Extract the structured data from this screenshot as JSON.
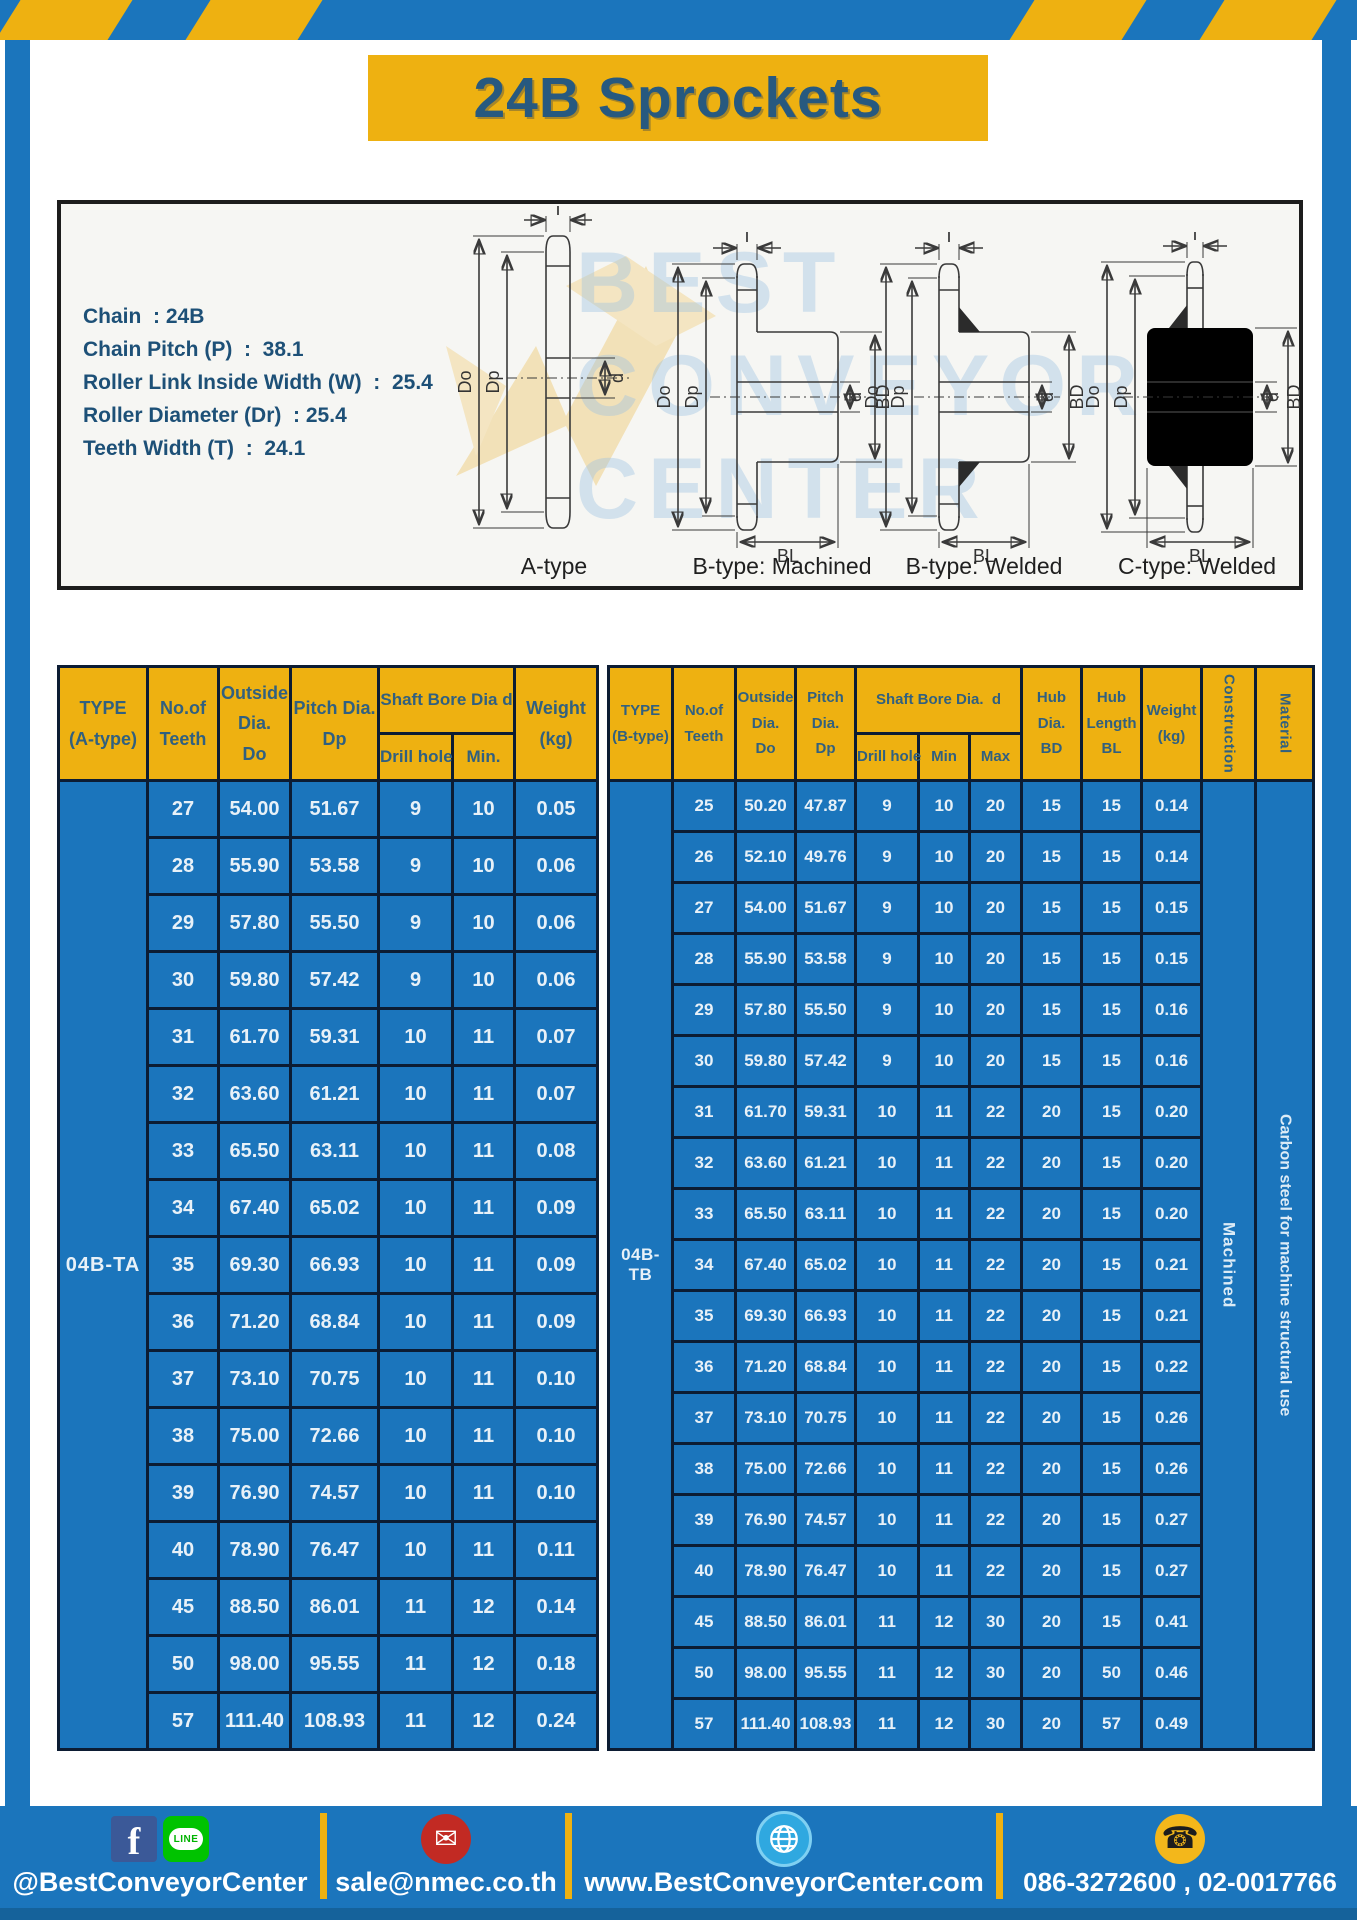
{
  "page": {
    "title": "24B Sprockets"
  },
  "colors": {
    "blue": "#1b75bc",
    "yellow": "#eeb111",
    "navy_text": "#1d5077",
    "cell_border": "#0c1c33"
  },
  "specs": {
    "lines": [
      "Chain  : 24B",
      "Chain Pitch (P)  :  38.1",
      "Roller Link Inside Width (W)  :  25.4",
      "Roller Diameter (Dr)  : 25.4",
      "Teeth Width (T)  :  24.1"
    ]
  },
  "diagram": {
    "drawings": [
      {
        "label": "A-type"
      },
      {
        "label": "B-type: Machined"
      },
      {
        "label": "B-type: Welded"
      },
      {
        "label": "C-type: Welded"
      }
    ],
    "dims": {
      "t": "T",
      "outer": "Do",
      "pitch": "Dp",
      "bore": "d",
      "hub_dia": "BD",
      "hub_len": "BL"
    },
    "watermark": {
      "line1": "BEST",
      "line2": "CONVEYOR",
      "line3": "CENTER"
    }
  },
  "table_a": {
    "type_header": "TYPE\n(A-type)",
    "teeth_header": "No.of\nTeeth",
    "outside_header": "Outside\nDia.\nDo",
    "pitch_header": "Pitch Dia.\nDp",
    "shaft_bore_header": "Shaft Bore Dia d",
    "drill_header": "Drill hole",
    "min_header": "Min.",
    "weight_header": "Weight\n(kg)",
    "type_value": "04B-TA",
    "rows": [
      [
        "27",
        "54.00",
        "51.67",
        "9",
        "10",
        "0.05"
      ],
      [
        "28",
        "55.90",
        "53.58",
        "9",
        "10",
        "0.06"
      ],
      [
        "29",
        "57.80",
        "55.50",
        "9",
        "10",
        "0.06"
      ],
      [
        "30",
        "59.80",
        "57.42",
        "9",
        "10",
        "0.06"
      ],
      [
        "31",
        "61.70",
        "59.31",
        "10",
        "11",
        "0.07"
      ],
      [
        "32",
        "63.60",
        "61.21",
        "10",
        "11",
        "0.07"
      ],
      [
        "33",
        "65.50",
        "63.11",
        "10",
        "11",
        "0.08"
      ],
      [
        "34",
        "67.40",
        "65.02",
        "10",
        "11",
        "0.09"
      ],
      [
        "35",
        "69.30",
        "66.93",
        "10",
        "11",
        "0.09"
      ],
      [
        "36",
        "71.20",
        "68.84",
        "10",
        "11",
        "0.09"
      ],
      [
        "37",
        "73.10",
        "70.75",
        "10",
        "11",
        "0.10"
      ],
      [
        "38",
        "75.00",
        "72.66",
        "10",
        "11",
        "0.10"
      ],
      [
        "39",
        "76.90",
        "74.57",
        "10",
        "11",
        "0.10"
      ],
      [
        "40",
        "78.90",
        "76.47",
        "10",
        "11",
        "0.11"
      ],
      [
        "45",
        "88.50",
        "86.01",
        "11",
        "12",
        "0.14"
      ],
      [
        "50",
        "98.00",
        "95.55",
        "11",
        "12",
        "0.18"
      ],
      [
        "57",
        "111.40",
        "108.93",
        "11",
        "12",
        "0.24"
      ]
    ]
  },
  "table_b": {
    "type_header": "TYPE\n(B-type)",
    "teeth_header": "No.of\nTeeth",
    "outside_header": "Outside\nDia.\nDo",
    "pitch_header": "Pitch\nDia.\nDp",
    "shaft_bore_header": "Shaft Bore Dia.  d",
    "drill_header": "Drill hole",
    "min_header": "Min",
    "max_header": "Max",
    "hub_dia_header": "Hub\nDia.\nBD",
    "hub_len_header": "Hub\nLength\nBL",
    "weight_header": "Weight\n(kg)",
    "construction_header": "Construction",
    "material_header": "Material",
    "type_value": "04B-TB",
    "construction_value": "Machined",
    "material_value": "Carbon steel for machine structural use",
    "rows": [
      [
        "25",
        "50.20",
        "47.87",
        "9",
        "10",
        "20",
        "15",
        "15",
        "0.14"
      ],
      [
        "26",
        "52.10",
        "49.76",
        "9",
        "10",
        "20",
        "15",
        "15",
        "0.14"
      ],
      [
        "27",
        "54.00",
        "51.67",
        "9",
        "10",
        "20",
        "15",
        "15",
        "0.15"
      ],
      [
        "28",
        "55.90",
        "53.58",
        "9",
        "10",
        "20",
        "15",
        "15",
        "0.15"
      ],
      [
        "29",
        "57.80",
        "55.50",
        "9",
        "10",
        "20",
        "15",
        "15",
        "0.16"
      ],
      [
        "30",
        "59.80",
        "57.42",
        "9",
        "10",
        "20",
        "15",
        "15",
        "0.16"
      ],
      [
        "31",
        "61.70",
        "59.31",
        "10",
        "11",
        "22",
        "20",
        "15",
        "0.20"
      ],
      [
        "32",
        "63.60",
        "61.21",
        "10",
        "11",
        "22",
        "20",
        "15",
        "0.20"
      ],
      [
        "33",
        "65.50",
        "63.11",
        "10",
        "11",
        "22",
        "20",
        "15",
        "0.20"
      ],
      [
        "34",
        "67.40",
        "65.02",
        "10",
        "11",
        "22",
        "20",
        "15",
        "0.21"
      ],
      [
        "35",
        "69.30",
        "66.93",
        "10",
        "11",
        "22",
        "20",
        "15",
        "0.21"
      ],
      [
        "36",
        "71.20",
        "68.84",
        "10",
        "11",
        "22",
        "20",
        "15",
        "0.22"
      ],
      [
        "37",
        "73.10",
        "70.75",
        "10",
        "11",
        "22",
        "20",
        "15",
        "0.26"
      ],
      [
        "38",
        "75.00",
        "72.66",
        "10",
        "11",
        "22",
        "20",
        "15",
        "0.26"
      ],
      [
        "39",
        "76.90",
        "74.57",
        "10",
        "11",
        "22",
        "20",
        "15",
        "0.27"
      ],
      [
        "40",
        "78.90",
        "76.47",
        "10",
        "11",
        "22",
        "20",
        "15",
        "0.27"
      ],
      [
        "45",
        "88.50",
        "86.01",
        "11",
        "12",
        "30",
        "20",
        "15",
        "0.41"
      ],
      [
        "50",
        "98.00",
        "95.55",
        "11",
        "12",
        "30",
        "20",
        "50",
        "0.46"
      ],
      [
        "57",
        "111.40",
        "108.93",
        "11",
        "12",
        "30",
        "20",
        "57",
        "0.49"
      ]
    ]
  },
  "footer": {
    "facebook_label": "f",
    "line_label": "LINE",
    "social_handle": "@BestConveyorCenter",
    "email": "sale@nmec.co.th",
    "website": "www.BestConveyorCenter.com",
    "phone": "086-3272600 , 02-0017766"
  }
}
